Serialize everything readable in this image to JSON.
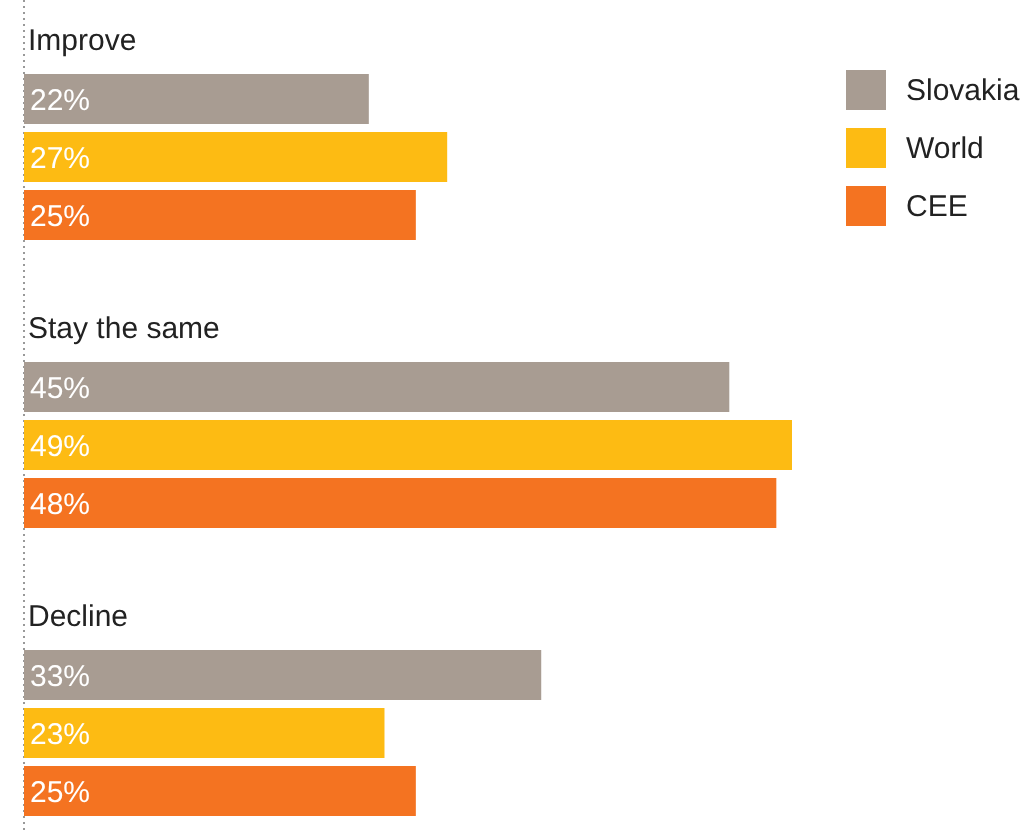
{
  "chart_data": {
    "type": "bar",
    "orientation": "horizontal",
    "categories": [
      "Improve",
      "Stay the same",
      "Decline"
    ],
    "series": [
      {
        "name": "Slovakia",
        "color": "#a89c92",
        "values": [
          22,
          45,
          33
        ],
        "value_labels": [
          "22%",
          "45%",
          "33%"
        ]
      },
      {
        "name": "World",
        "color": "#fdbb13",
        "values": [
          27,
          49,
          23
        ],
        "value_labels": [
          "27%",
          "49%",
          "23%"
        ]
      },
      {
        "name": "CEE",
        "color": "#f47321",
        "values": [
          25,
          48,
          25
        ],
        "value_labels": [
          "25%",
          "48%",
          "25%"
        ]
      }
    ],
    "legend": "top right"
  }
}
